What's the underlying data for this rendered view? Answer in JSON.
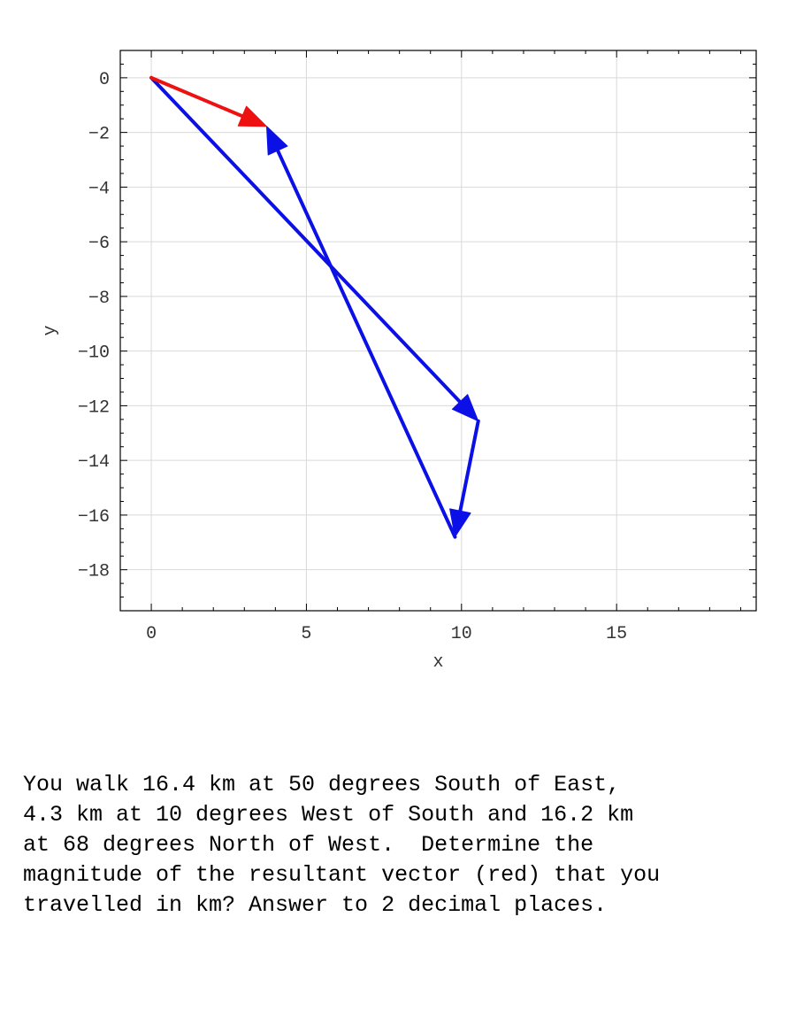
{
  "chart_data": {
    "type": "vector_plot",
    "xlabel": "x",
    "ylabel": "y",
    "xlim": [
      -1,
      19.5
    ],
    "ylim": [
      -19.5,
      1
    ],
    "xticks": [
      0,
      5,
      10,
      15
    ],
    "yticks": [
      0,
      -2,
      -4,
      -6,
      -8,
      -10,
      -12,
      -14,
      -16,
      -18
    ],
    "grid": true,
    "vectors": [
      {
        "from": [
          0,
          0
        ],
        "to": [
          10.54,
          -12.56
        ],
        "color": "#0b10e6"
      },
      {
        "from": [
          10.54,
          -12.56
        ],
        "to": [
          9.79,
          -16.8
        ],
        "color": "#0b10e6"
      },
      {
        "from": [
          9.79,
          -16.8
        ],
        "to": [
          3.72,
          -1.78
        ],
        "color": "#0b10e6"
      },
      {
        "from": [
          0,
          0
        ],
        "to": [
          3.72,
          -1.78
        ],
        "color": "#ee1111"
      }
    ]
  },
  "question": {
    "text": "You walk 16.4 km at 50 degrees South of East,\n4.3 km at 10 degrees West of South and 16.2 km\nat 68 degrees North of West.  Determine the\nmagnitude of the resultant vector (red) that you\ntravelled in km? Answer to 2 decimal places."
  }
}
